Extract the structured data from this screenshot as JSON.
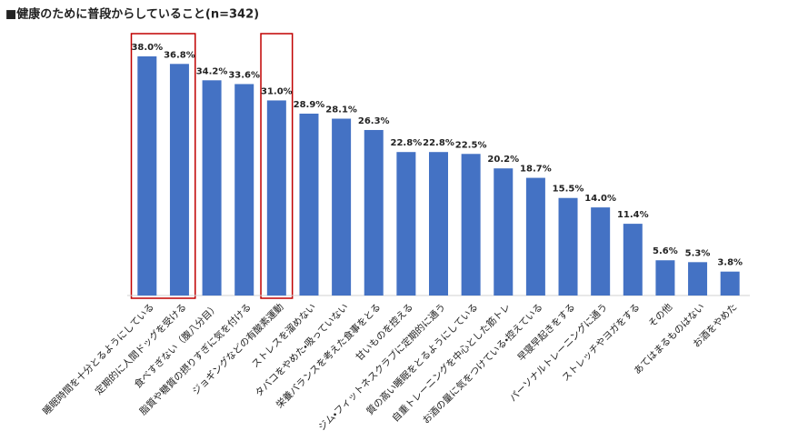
{
  "chart_data": {
    "type": "bar",
    "title": "■健康のために普段からしていること(n=342)",
    "categories": [
      "睡眠時間を十分とるようにしている",
      "定期的に人間ドッグを受ける",
      "食べすぎない（腹八分目）",
      "脂質や糖質の摂りすぎに気を付ける",
      "ジョギングなどの有酸素運動",
      "ストレスを溜めない",
      "タバコをやめた・吸っていない",
      "栄養バランスを考えた食事をとる",
      "甘いものを控える",
      "ジム・フィットネスクラブに定期的に通う",
      "質の高い睡眠をとるようにしている",
      "自重トレーニングを中心とした筋トレ",
      "お酒の量に気をつけている・控えている",
      "早寝早起きをする",
      "パーソナルトレーニングに通う",
      "ストレッチやヨガをする",
      "その他",
      "あてはまるものはない",
      "お酒をやめた"
    ],
    "values": [
      38.0,
      36.8,
      34.2,
      33.6,
      31.0,
      28.9,
      28.1,
      26.3,
      22.8,
      22.8,
      22.5,
      20.2,
      18.7,
      15.5,
      14.0,
      11.4,
      5.6,
      5.3,
      3.8
    ],
    "value_labels": [
      "38.0%",
      "36.8%",
      "34.2%",
      "33.6%",
      "31.0%",
      "28.9%",
      "28.1%",
      "26.3%",
      "22.8%",
      "22.8%",
      "22.5%",
      "20.2%",
      "18.7%",
      "15.5%",
      "14.0%",
      "11.4%",
      "5.6%",
      "5.3%",
      "3.8%"
    ],
    "color": "#4472c4",
    "highlight_groups": [
      [
        0,
        1
      ],
      [
        4
      ]
    ],
    "highlight_color": "#c00000"
  }
}
